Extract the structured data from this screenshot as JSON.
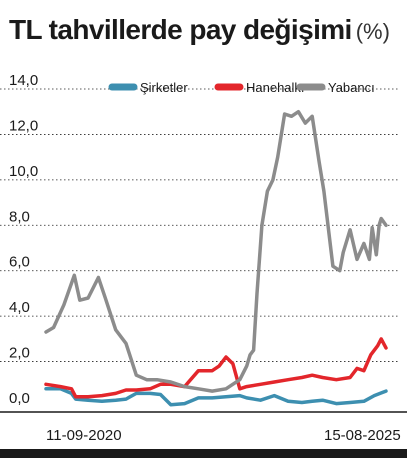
{
  "header": {
    "title": "TL tahvillerde pay değişimi",
    "unit": "(%)"
  },
  "chart_data": {
    "type": "line",
    "title": "TL tahvillerde pay değişimi",
    "unit": "(%)",
    "xlabel": "",
    "ylabel": "",
    "x_start_label": "11-09-2020",
    "x_end_label": "15-08-2025",
    "x_range": [
      2020.69,
      2025.62
    ],
    "ylim": [
      0,
      14
    ],
    "yticks": [
      "0,0",
      "2,0",
      "4,0",
      "6,0",
      "8,0",
      "10,0",
      "12,0",
      "14,0"
    ],
    "ytick_values": [
      0,
      2,
      4,
      6,
      8,
      10,
      12,
      14
    ],
    "grid": true,
    "legend_position": "top-right",
    "series": [
      {
        "name": "Şirketler",
        "color": "#3d8fb0",
        "x": [
          2020.69,
          2020.9,
          2021.06,
          2021.12,
          2021.3,
          2021.5,
          2021.7,
          2021.85,
          2022.0,
          2022.2,
          2022.35,
          2022.5,
          2022.7,
          2022.9,
          2023.1,
          2023.3,
          2023.5,
          2023.6,
          2023.8,
          2024.0,
          2024.2,
          2024.4,
          2024.55,
          2024.7,
          2024.9,
          2025.1,
          2025.3,
          2025.45,
          2025.62
        ],
        "values": [
          0.8,
          0.8,
          0.6,
          0.35,
          0.3,
          0.25,
          0.3,
          0.35,
          0.6,
          0.6,
          0.55,
          0.1,
          0.15,
          0.4,
          0.4,
          0.45,
          0.5,
          0.4,
          0.3,
          0.5,
          0.25,
          0.2,
          0.25,
          0.3,
          0.15,
          0.2,
          0.25,
          0.5,
          0.7
        ]
      },
      {
        "name": "Hanehalkı",
        "color": "#e3262b",
        "x": [
          2020.69,
          2020.9,
          2021.06,
          2021.12,
          2021.3,
          2021.5,
          2021.7,
          2021.85,
          2022.0,
          2022.2,
          2022.35,
          2022.5,
          2022.7,
          2022.9,
          2023.1,
          2023.2,
          2023.3,
          2023.4,
          2023.5,
          2023.6,
          2023.8,
          2024.0,
          2024.2,
          2024.4,
          2024.55,
          2024.7,
          2024.9,
          2025.1,
          2025.2,
          2025.3,
          2025.4,
          2025.5,
          2025.55,
          2025.62
        ],
        "values": [
          1.0,
          0.9,
          0.8,
          0.45,
          0.45,
          0.5,
          0.6,
          0.75,
          0.75,
          0.8,
          1.0,
          1.0,
          0.9,
          1.6,
          1.6,
          1.8,
          2.2,
          1.9,
          0.8,
          0.9,
          1.0,
          1.1,
          1.2,
          1.3,
          1.4,
          1.3,
          1.2,
          1.3,
          1.7,
          1.6,
          2.3,
          2.7,
          3.0,
          2.6
        ]
      },
      {
        "name": "Yabancı",
        "color": "#8c8c8c",
        "x": [
          2020.69,
          2020.8,
          2020.95,
          2021.1,
          2021.18,
          2021.3,
          2021.45,
          2021.55,
          2021.7,
          2021.85,
          2022.0,
          2022.15,
          2022.3,
          2022.5,
          2022.7,
          2022.9,
          2023.1,
          2023.3,
          2023.5,
          2023.6,
          2023.65,
          2023.7,
          2023.75,
          2023.82,
          2023.9,
          2023.98,
          2024.05,
          2024.15,
          2024.25,
          2024.35,
          2024.45,
          2024.55,
          2024.65,
          2024.72,
          2024.85,
          2024.95,
          2025.0,
          2025.1,
          2025.2,
          2025.3,
          2025.38,
          2025.42,
          2025.48,
          2025.52,
          2025.55,
          2025.62
        ],
        "values": [
          3.3,
          3.5,
          4.5,
          5.8,
          4.7,
          4.8,
          5.7,
          4.8,
          3.4,
          2.8,
          1.4,
          1.2,
          1.2,
          1.1,
          0.9,
          0.8,
          0.7,
          0.8,
          1.2,
          1.8,
          2.3,
          2.5,
          5.0,
          8.0,
          9.5,
          10.0,
          11.0,
          12.9,
          12.8,
          13.0,
          12.5,
          12.8,
          10.8,
          9.5,
          6.2,
          6.0,
          6.8,
          7.8,
          6.5,
          7.2,
          6.5,
          7.9,
          6.7,
          8.0,
          8.3,
          8.0
        ]
      }
    ]
  }
}
